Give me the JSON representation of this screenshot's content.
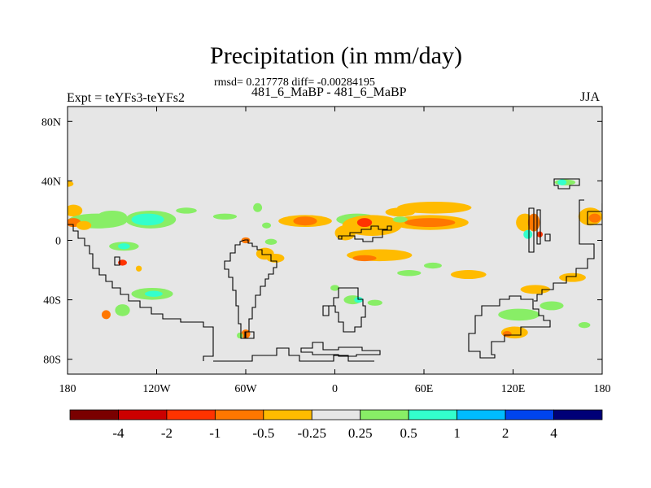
{
  "chart_data": {
    "type": "heatmap",
    "title": "Precipitation (in mm/day)",
    "stats_text": "rmsd= 0.217778 diff= -0.00284195",
    "runs_text": "481_6_MaBP - 481_6_MaBP",
    "experiment_text": "Expt = teYFs3-teYFs2",
    "season": "JJA",
    "xlim": [
      -180,
      180
    ],
    "ylim": [
      -90,
      90
    ],
    "x_ticks": [
      {
        "value": -180,
        "label": "180"
      },
      {
        "value": -120,
        "label": "120W"
      },
      {
        "value": -60,
        "label": "60W"
      },
      {
        "value": 0,
        "label": "0"
      },
      {
        "value": 60,
        "label": "60E"
      },
      {
        "value": 120,
        "label": "120E"
      },
      {
        "value": 180,
        "label": "180"
      }
    ],
    "y_ticks": [
      {
        "value": 80,
        "label": "80N"
      },
      {
        "value": 40,
        "label": "40N"
      },
      {
        "value": 0,
        "label": "0"
      },
      {
        "value": -40,
        "label": "40S"
      },
      {
        "value": -80,
        "label": "80S"
      }
    ],
    "colorbar": {
      "colors": [
        "#7a0000",
        "#cc0000",
        "#ff3300",
        "#ff7700",
        "#ffbb00",
        "#e6e6e6",
        "#88ee66",
        "#33ffcc",
        "#00bbff",
        "#0044ee",
        "#000077"
      ],
      "labels": [
        "-4",
        "-2",
        "-1",
        "-0.5",
        "-0.25",
        "0.25",
        "0.5",
        "1",
        "2",
        "4"
      ]
    },
    "background_color": "#e6e6e6",
    "anomaly_regions": [
      {
        "lon": -176,
        "lat": 20,
        "rx": 6,
        "ry": 4,
        "color": "#ffbb00"
      },
      {
        "lon": -150,
        "lat": 16,
        "rx": 10,
        "ry": 4,
        "color": "#88ee66"
      },
      {
        "lon": -160,
        "lat": 13,
        "rx": 20,
        "ry": 5,
        "color": "#88ee66"
      },
      {
        "lon": -124,
        "lat": 14,
        "rx": 17,
        "ry": 6,
        "color": "#88ee66"
      },
      {
        "lon": -126,
        "lat": 14,
        "rx": 11,
        "ry": 4,
        "color": "#33ffcc"
      },
      {
        "lon": -176,
        "lat": 12,
        "rx": 5,
        "ry": 3,
        "color": "#ff7700"
      },
      {
        "lon": -169,
        "lat": 10,
        "rx": 5,
        "ry": 3,
        "color": "#ffbb00"
      },
      {
        "lon": -100,
        "lat": 20,
        "rx": 7,
        "ry": 2,
        "color": "#88ee66"
      },
      {
        "lon": -74,
        "lat": 16,
        "rx": 8,
        "ry": 2,
        "color": "#88ee66"
      },
      {
        "lon": -52,
        "lat": 22,
        "rx": 3,
        "ry": 3,
        "color": "#88ee66"
      },
      {
        "lon": -142,
        "lat": -4,
        "rx": 10,
        "ry": 3,
        "color": "#88ee66"
      },
      {
        "lon": -142,
        "lat": -4,
        "rx": 4,
        "ry": 2,
        "color": "#33ffcc"
      },
      {
        "lon": -143,
        "lat": -15,
        "rx": 3,
        "ry": 2,
        "color": "#ff3300"
      },
      {
        "lon": -132,
        "lat": -19,
        "rx": 2,
        "ry": 2,
        "color": "#ffbb00"
      },
      {
        "lon": -123,
        "lat": -36,
        "rx": 14,
        "ry": 4,
        "color": "#88ee66"
      },
      {
        "lon": -122,
        "lat": -36,
        "rx": 6,
        "ry": 2,
        "color": "#33ffcc"
      },
      {
        "lon": -143,
        "lat": -47,
        "rx": 5,
        "ry": 4,
        "color": "#88ee66"
      },
      {
        "lon": -154,
        "lat": -50,
        "rx": 3,
        "ry": 3,
        "color": "#ff7700"
      },
      {
        "lon": -60,
        "lat": 0,
        "rx": 3,
        "ry": 2,
        "color": "#ff7700"
      },
      {
        "lon": -43,
        "lat": -1,
        "rx": 4,
        "ry": 2,
        "color": "#88ee66"
      },
      {
        "lon": -47,
        "lat": -9,
        "rx": 6,
        "ry": 4,
        "color": "#ffbb00"
      },
      {
        "lon": -40,
        "lat": -12,
        "rx": 6,
        "ry": 3,
        "color": "#ffbb00"
      },
      {
        "lon": -60,
        "lat": -63,
        "rx": 3,
        "ry": 3,
        "color": "#ff7700"
      },
      {
        "lon": -64,
        "lat": -64,
        "rx": 2,
        "ry": 2,
        "color": "#88ee66"
      },
      {
        "lon": -20,
        "lat": 13,
        "rx": 18,
        "ry": 4,
        "color": "#ffbb00"
      },
      {
        "lon": -20,
        "lat": 13,
        "rx": 8,
        "ry": 3,
        "color": "#ff7700"
      },
      {
        "lon": -46,
        "lat": 10,
        "rx": 3,
        "ry": 2,
        "color": "#88ee66"
      },
      {
        "lon": 15,
        "lat": 14,
        "rx": 14,
        "ry": 4,
        "color": "#88ee66"
      },
      {
        "lon": 15,
        "lat": 14,
        "rx": 5,
        "ry": 2,
        "color": "#33ffcc"
      },
      {
        "lon": 25,
        "lat": 10,
        "rx": 20,
        "ry": 7,
        "color": "#ffbb00"
      },
      {
        "lon": 20,
        "lat": 12,
        "rx": 5,
        "ry": 3,
        "color": "#ff3300"
      },
      {
        "lon": 7,
        "lat": 5,
        "rx": 7,
        "ry": 5,
        "color": "#ffbb00"
      },
      {
        "lon": 67,
        "lat": 22,
        "rx": 25,
        "ry": 4,
        "color": "#ffbb00"
      },
      {
        "lon": 44,
        "lat": 19,
        "rx": 10,
        "ry": 3,
        "color": "#ffbb00"
      },
      {
        "lon": 64,
        "lat": 12,
        "rx": 26,
        "ry": 5,
        "color": "#ffbb00"
      },
      {
        "lon": 64,
        "lat": 12,
        "rx": 17,
        "ry": 3,
        "color": "#ff7700"
      },
      {
        "lon": 44,
        "lat": 14,
        "rx": 5,
        "ry": 2,
        "color": "#88ee66"
      },
      {
        "lon": 30,
        "lat": -10,
        "rx": 22,
        "ry": 4,
        "color": "#ffbb00"
      },
      {
        "lon": 20,
        "lat": -12,
        "rx": 8,
        "ry": 2,
        "color": "#ff7700"
      },
      {
        "lon": 90,
        "lat": -23,
        "rx": 12,
        "ry": 3,
        "color": "#ffbb00"
      },
      {
        "lon": 66,
        "lat": -17,
        "rx": 6,
        "ry": 2,
        "color": "#88ee66"
      },
      {
        "lon": 12,
        "lat": -40,
        "rx": 6,
        "ry": 3,
        "color": "#88ee66"
      },
      {
        "lon": 16,
        "lat": -40,
        "rx": 3,
        "ry": 2,
        "color": "#33ffcc"
      },
      {
        "lon": 27,
        "lat": -42,
        "rx": 5,
        "ry": 2,
        "color": "#88ee66"
      },
      {
        "lon": 0,
        "lat": -32,
        "rx": 3,
        "ry": 2,
        "color": "#88ee66"
      },
      {
        "lon": 50,
        "lat": -22,
        "rx": 8,
        "ry": 2,
        "color": "#88ee66"
      },
      {
        "lon": 128,
        "lat": 12,
        "rx": 6,
        "ry": 6,
        "color": "#ffbb00"
      },
      {
        "lon": 134,
        "lat": 12,
        "rx": 4,
        "ry": 6,
        "color": "#ff7700"
      },
      {
        "lon": 130,
        "lat": 4,
        "rx": 3,
        "ry": 3,
        "color": "#33ffcc"
      },
      {
        "lon": 138,
        "lat": 4,
        "rx": 2,
        "ry": 2,
        "color": "#ff3300"
      },
      {
        "lon": 155,
        "lat": 39,
        "rx": 7,
        "ry": 2,
        "color": "#88ee66"
      },
      {
        "lon": 153,
        "lat": 39,
        "rx": 3,
        "ry": 2,
        "color": "#33ffcc"
      },
      {
        "lon": 172,
        "lat": 16,
        "rx": 8,
        "ry": 6,
        "color": "#ffbb00"
      },
      {
        "lon": 175,
        "lat": 15,
        "rx": 4,
        "ry": 3,
        "color": "#ff7700"
      },
      {
        "lon": -180,
        "lat": 38,
        "rx": 4,
        "ry": 2,
        "color": "#ffbb00"
      },
      {
        "lon": 135,
        "lat": -33,
        "rx": 10,
        "ry": 3,
        "color": "#ffbb00"
      },
      {
        "lon": 160,
        "lat": -25,
        "rx": 9,
        "ry": 3,
        "color": "#ffbb00"
      },
      {
        "lon": 146,
        "lat": -44,
        "rx": 8,
        "ry": 3,
        "color": "#88ee66"
      },
      {
        "lon": 124,
        "lat": -50,
        "rx": 14,
        "ry": 4,
        "color": "#88ee66"
      },
      {
        "lon": 121,
        "lat": -62,
        "rx": 9,
        "ry": 4,
        "color": "#ffbb00"
      },
      {
        "lon": 116,
        "lat": -63,
        "rx": 3,
        "ry": 2,
        "color": "#ff7700"
      },
      {
        "lon": 168,
        "lat": -57,
        "rx": 4,
        "ry": 2,
        "color": "#88ee66"
      }
    ]
  }
}
